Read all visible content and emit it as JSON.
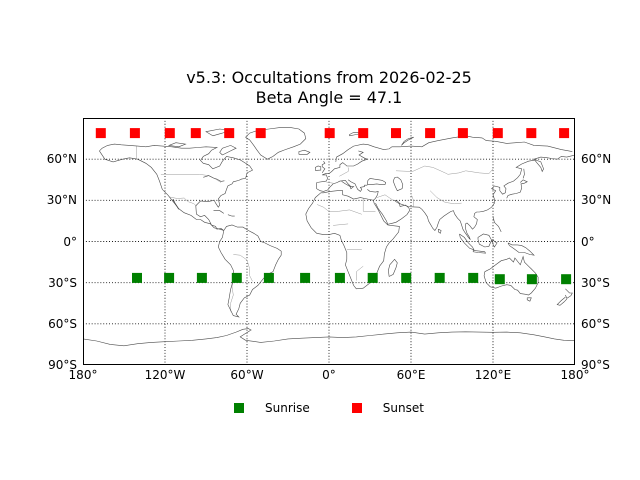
{
  "title": {
    "line1": "v5.3: Occultations from 2026-02-25",
    "line2": "Beta Angle = 47.1"
  },
  "colors": {
    "sunrise": "#008000",
    "sunset": "#ff0000",
    "background": "#ffffff",
    "grid": "#000000",
    "coastline": "#4a4a4a",
    "country_border": "#9a9a9a"
  },
  "axes": {
    "x_tick_labels": [
      "180°",
      "120°W",
      "60°W",
      "0°",
      "60°E",
      "120°E",
      "180°"
    ],
    "x_tick_lons": [
      -180,
      -120,
      -60,
      0,
      60,
      120,
      180
    ],
    "y_tick_labels_left": [
      "60°N",
      "30°N",
      "0°",
      "30°S",
      "60°S",
      "90°S"
    ],
    "y_tick_labels_right": [
      "60°N",
      "30°N",
      "0°",
      "30°S",
      "60°S",
      "90°S"
    ],
    "y_tick_lats": [
      60,
      30,
      0,
      -30,
      -60,
      -90
    ],
    "grid_lons": [
      -120,
      -60,
      0,
      60,
      120
    ],
    "grid_lats": [
      60,
      30,
      0,
      -30,
      -60
    ]
  },
  "legend": {
    "items": [
      {
        "label": "Sunrise",
        "color": "#008000"
      },
      {
        "label": "Sunset",
        "color": "#ff0000"
      }
    ]
  },
  "chart_data": {
    "type": "scatter",
    "title": "v5.3: Occultations from 2026-02-25 / Beta Angle = 47.1",
    "projection": "equirectangular world map",
    "xlim": [
      -180,
      180
    ],
    "ylim": [
      -90,
      90
    ],
    "grid": true,
    "legend_position": "below plot, centered",
    "series": [
      {
        "name": "Sunrise",
        "marker": "square",
        "color": "#008000",
        "points_lon_lat": [
          [
            -140.5,
            -26.5
          ],
          [
            -117,
            -26.5
          ],
          [
            -93,
            -26.5
          ],
          [
            -67.5,
            -26.5
          ],
          [
            -44,
            -26.5
          ],
          [
            -17.5,
            -26.5
          ],
          [
            8,
            -26.5
          ],
          [
            32,
            -26.5
          ],
          [
            56.5,
            -26.5
          ],
          [
            81,
            -26.5
          ],
          [
            105.5,
            -26.5
          ],
          [
            125,
            -27.5
          ],
          [
            148.5,
            -27.5
          ],
          [
            173.5,
            -27.5
          ]
        ]
      },
      {
        "name": "Sunset",
        "marker": "square",
        "color": "#ff0000",
        "points_lon_lat": [
          [
            -167,
            79
          ],
          [
            -142,
            79
          ],
          [
            -116.5,
            79
          ],
          [
            -97.5,
            79
          ],
          [
            -73,
            79
          ],
          [
            -50,
            79
          ],
          [
            0.5,
            79
          ],
          [
            25,
            79
          ],
          [
            49,
            79
          ],
          [
            74,
            79
          ],
          [
            98,
            79
          ],
          [
            123.5,
            79
          ],
          [
            148,
            79
          ],
          [
            172,
            79
          ]
        ]
      }
    ]
  }
}
